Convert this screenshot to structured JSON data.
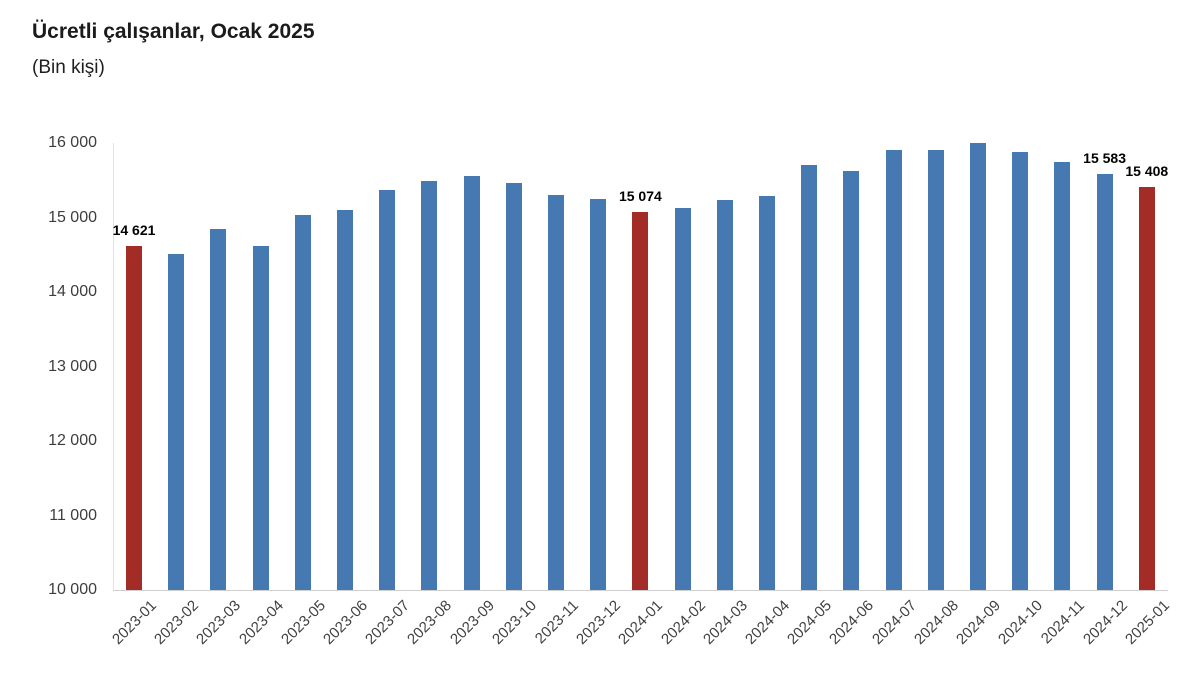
{
  "chart_data": {
    "type": "bar",
    "title": "Ücretli çalışanlar, Ocak 2025",
    "subtitle": "(Bin kişi)",
    "categories": [
      "2023-01",
      "2023-02",
      "2023-03",
      "2023-04",
      "2023-05",
      "2023-06",
      "2023-07",
      "2023-08",
      "2023-09",
      "2023-10",
      "2023-11",
      "2023-12",
      "2024-01",
      "2024-02",
      "2024-03",
      "2024-04",
      "2024-05",
      "2024-06",
      "2024-07",
      "2024-08",
      "2024-09",
      "2024-10",
      "2024-11",
      "2024-12",
      "2025-01"
    ],
    "values": [
      14621,
      14510,
      14846,
      14622,
      15027,
      15098,
      15371,
      15486,
      15560,
      15462,
      15299,
      15245,
      15074,
      15122,
      15230,
      15285,
      15704,
      15623,
      15912,
      15906,
      15994,
      15876,
      15748,
      15583,
      15408
    ],
    "highlighted_indices": [
      0,
      12,
      24
    ],
    "bar_color": "#4678B2",
    "highlight_color": "#A32C26",
    "annotations": [
      {
        "index": 0,
        "text": "14 621"
      },
      {
        "index": 12,
        "text": "15 074"
      },
      {
        "index": 23,
        "text": "15 583"
      },
      {
        "index": 24,
        "text": "15 408"
      }
    ],
    "ylim": [
      10000,
      16000
    ],
    "yticks": [
      {
        "value": 16000,
        "label": "16 000"
      },
      {
        "value": 15000,
        "label": "15 000"
      },
      {
        "value": 14000,
        "label": "14 000"
      },
      {
        "value": 13000,
        "label": "13 000"
      },
      {
        "value": 12000,
        "label": "12 000"
      },
      {
        "value": 11000,
        "label": "11 000"
      },
      {
        "value": 10000,
        "label": "10 000"
      }
    ],
    "xlabel": "",
    "ylabel": "",
    "grid": false,
    "legend": "none"
  }
}
